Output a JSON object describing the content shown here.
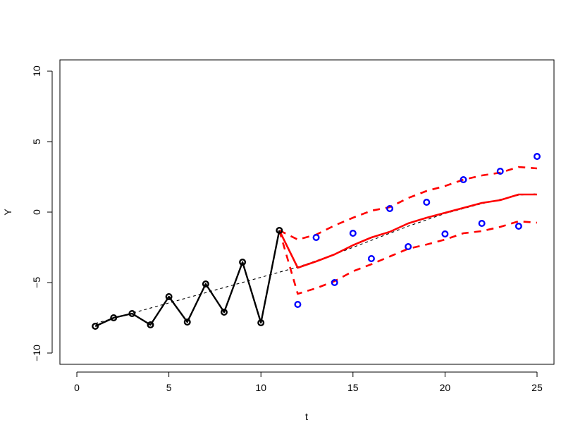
{
  "chart_data": {
    "type": "line",
    "title": "",
    "xlabel": "t",
    "ylabel": "Y",
    "xlim": [
      -0.92,
      25.92
    ],
    "ylim": [
      -10.8,
      10.8
    ],
    "xticks": [
      0,
      5,
      10,
      15,
      20,
      25
    ],
    "yticks": [
      -10,
      -5,
      0,
      5,
      10
    ],
    "xtick_labels": [
      "0",
      "5",
      "10",
      "15",
      "20",
      "25"
    ],
    "ytick_labels": [
      "−10",
      "−5",
      "0",
      "5",
      "10"
    ],
    "grid": false,
    "legend": "none",
    "series": [
      {
        "style": "black-line-with-circles",
        "color": "#000000",
        "x": [
          1,
          2,
          3,
          4,
          5,
          6,
          7,
          8,
          9,
          10,
          11
        ],
        "y": [
          -8.1,
          -7.5,
          -7.2,
          -8.0,
          -6.0,
          -7.8,
          -5.1,
          -7.1,
          -3.55,
          -7.85,
          -1.3
        ]
      },
      {
        "style": "black-dashed-trend",
        "color": "#000000",
        "x": [
          1,
          12,
          14,
          16,
          18,
          20,
          22,
          24,
          25
        ],
        "y": [
          -7.9,
          -3.9,
          -3.0,
          -2.0,
          -1.0,
          -0.1,
          0.6,
          1.2,
          1.3
        ]
      },
      {
        "style": "blue-observed-circles",
        "color": "#0000ff",
        "x": [
          12,
          13,
          14,
          15,
          16,
          17,
          18,
          19,
          20,
          21,
          22,
          23,
          24,
          25
        ],
        "y": [
          -6.55,
          -1.8,
          -5.0,
          -1.5,
          -3.3,
          0.25,
          -2.45,
          0.7,
          -1.55,
          2.3,
          -0.8,
          2.9,
          -1.0,
          3.95
        ]
      },
      {
        "style": "red-solid-forecast",
        "color": "#ff0000",
        "x": [
          11,
          12,
          13,
          14,
          15,
          16,
          17,
          18,
          19,
          20,
          21,
          22,
          23,
          24,
          25
        ],
        "y": [
          -1.3,
          -3.95,
          -3.5,
          -3.0,
          -2.35,
          -1.8,
          -1.4,
          -0.8,
          -0.4,
          -0.05,
          0.3,
          0.65,
          0.85,
          1.25,
          1.25
        ]
      },
      {
        "style": "red-dashed-upper",
        "color": "#ff0000",
        "x": [
          11,
          12,
          13,
          14,
          15,
          16,
          17,
          18,
          19,
          20,
          21,
          22,
          23,
          24,
          25
        ],
        "y": [
          -1.3,
          -1.95,
          -1.6,
          -0.95,
          -0.4,
          0.1,
          0.35,
          1.0,
          1.5,
          1.85,
          2.3,
          2.6,
          2.8,
          3.2,
          3.1
        ]
      },
      {
        "style": "red-dashed-lower",
        "color": "#ff0000",
        "x": [
          11,
          12,
          13,
          14,
          15,
          16,
          17,
          18,
          19,
          20,
          21,
          22,
          23,
          24,
          25
        ],
        "y": [
          -1.3,
          -5.8,
          -5.4,
          -4.9,
          -4.2,
          -3.7,
          -3.15,
          -2.6,
          -2.3,
          -1.95,
          -1.5,
          -1.35,
          -1.05,
          -0.65,
          -0.75
        ]
      }
    ]
  }
}
